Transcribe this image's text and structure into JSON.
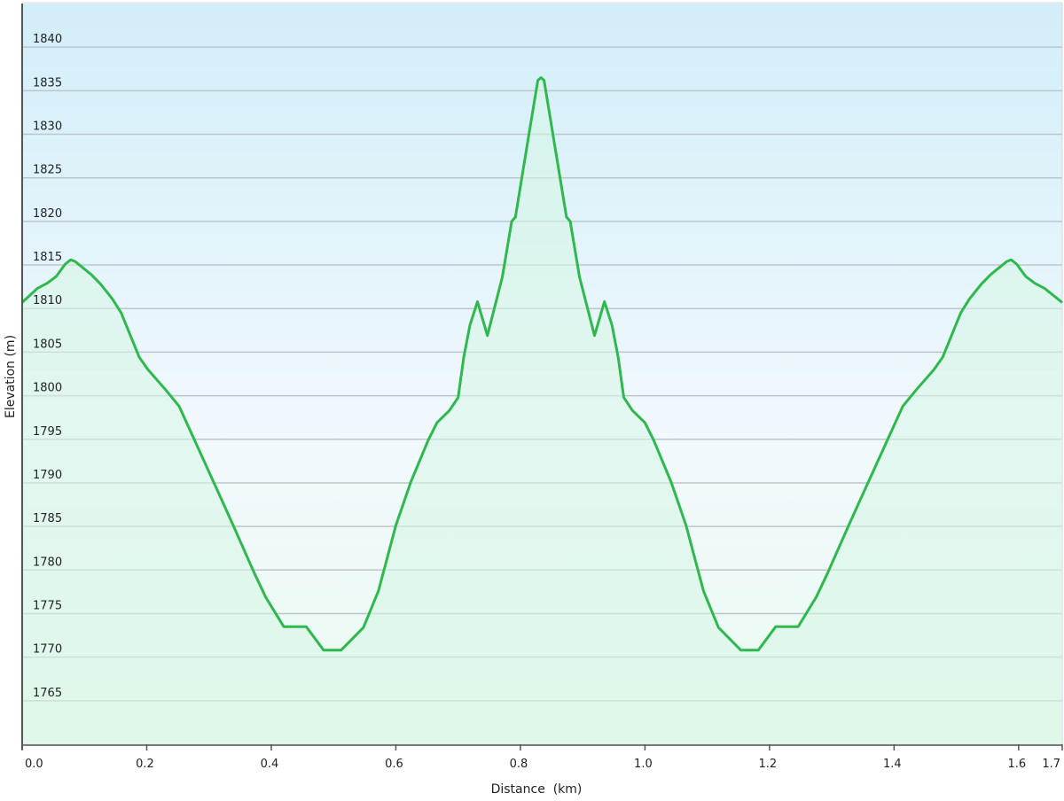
{
  "chart_data": {
    "type": "area",
    "title": "",
    "xlabel": "Distance  (km)",
    "ylabel": "Elevation (m)",
    "xlim": [
      0,
      1.67
    ],
    "ylim": [
      1760,
      1845
    ],
    "grid": true,
    "x_ticks": [
      {
        "value": 0.0,
        "label": "0.0"
      },
      {
        "value": 0.2,
        "label": "0.2"
      },
      {
        "value": 0.4,
        "label": "0.4"
      },
      {
        "value": 0.6,
        "label": "0.6"
      },
      {
        "value": 0.8,
        "label": "0.8"
      },
      {
        "value": 1.0,
        "label": "1.0"
      },
      {
        "value": 1.2,
        "label": "1.2"
      },
      {
        "value": 1.4,
        "label": "1.4"
      },
      {
        "value": 1.6,
        "label": "1.6"
      },
      {
        "value": 1.67,
        "label": "1.7"
      }
    ],
    "y_ticks": [
      {
        "value": 1840,
        "label": "1840"
      },
      {
        "value": 1835,
        "label": "1835"
      },
      {
        "value": 1830,
        "label": "1830"
      },
      {
        "value": 1825,
        "label": "1825"
      },
      {
        "value": 1820,
        "label": "1820"
      },
      {
        "value": 1815,
        "label": "1815"
      },
      {
        "value": 1810,
        "label": "1810"
      },
      {
        "value": 1805,
        "label": "1805"
      },
      {
        "value": 1800,
        "label": "1800"
      },
      {
        "value": 1795,
        "label": "1795"
      },
      {
        "value": 1790,
        "label": "1790"
      },
      {
        "value": 1785,
        "label": "1785"
      },
      {
        "value": 1780,
        "label": "1780"
      },
      {
        "value": 1775,
        "label": "1775"
      },
      {
        "value": 1770,
        "label": "1770"
      },
      {
        "value": 1765,
        "label": "1765"
      }
    ],
    "colors": {
      "line": "#2fb84e",
      "fill": "#d6f5e4",
      "background_top": "#d2eef9",
      "background_mid": "#f2f9fd",
      "background_bottom": "#eafaf0",
      "grid": "#bcc6ca"
    },
    "series": [
      {
        "x": [
          0.0,
          0.024,
          0.04,
          0.055,
          0.069,
          0.078,
          0.085,
          0.111,
          0.126,
          0.145,
          0.159,
          0.188,
          0.202,
          0.23,
          0.252,
          0.266,
          0.32,
          0.339,
          0.373,
          0.391,
          0.42,
          0.444,
          0.456,
          0.484,
          0.512,
          0.548,
          0.572,
          0.581,
          0.6,
          0.624,
          0.652,
          0.666,
          0.686,
          0.7,
          0.709,
          0.719,
          0.731,
          0.747,
          0.771,
          0.786,
          0.792,
          0.814,
          0.828,
          0.833,
          0.838,
          0.852,
          0.874,
          0.88,
          0.895,
          0.919,
          0.935,
          0.947,
          0.957,
          0.966,
          0.98,
          1.0,
          1.014,
          1.042,
          1.066,
          1.085,
          1.094,
          1.118,
          1.154,
          1.182,
          1.21,
          1.222,
          1.246,
          1.275,
          1.293,
          1.327,
          1.346,
          1.4,
          1.414,
          1.436,
          1.464,
          1.478,
          1.507,
          1.521,
          1.54,
          1.555,
          1.581,
          1.588,
          1.597,
          1.611,
          1.626,
          1.642,
          1.67
        ],
        "y": [
          1810.7,
          1812.3,
          1812.9,
          1813.7,
          1815.1,
          1815.6,
          1815.4,
          1813.9,
          1812.8,
          1811.1,
          1809.5,
          1804.4,
          1803.0,
          1800.7,
          1798.8,
          1796.6,
          1788.1,
          1785.1,
          1779.6,
          1776.9,
          1773.5,
          1773.5,
          1773.5,
          1770.8,
          1770.8,
          1773.4,
          1777.6,
          1780.0,
          1785.1,
          1790.1,
          1794.9,
          1796.9,
          1798.3,
          1799.8,
          1804.4,
          1808.1,
          1810.8,
          1806.9,
          1813.6,
          1820.0,
          1820.5,
          1830.1,
          1836.2,
          1836.5,
          1836.2,
          1830.1,
          1820.5,
          1820.0,
          1813.6,
          1806.9,
          1810.8,
          1808.1,
          1804.4,
          1799.8,
          1798.3,
          1796.9,
          1794.9,
          1790.1,
          1785.1,
          1780.0,
          1777.6,
          1773.4,
          1770.8,
          1770.8,
          1773.5,
          1773.5,
          1773.5,
          1776.9,
          1779.6,
          1785.1,
          1788.1,
          1796.6,
          1798.8,
          1800.7,
          1803.0,
          1804.4,
          1809.5,
          1811.1,
          1812.8,
          1813.9,
          1815.4,
          1815.6,
          1815.1,
          1813.7,
          1812.9,
          1812.3,
          1810.7
        ]
      }
    ]
  }
}
